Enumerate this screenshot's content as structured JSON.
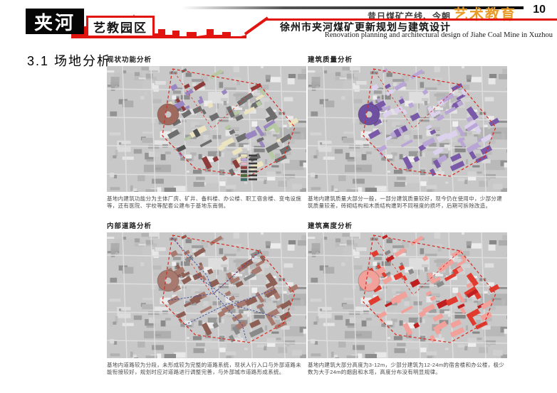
{
  "header": {
    "logo": "夹河",
    "badge": "艺教园区",
    "tagline_prefix": "昔日煤矿产线、今朝",
    "tagline_highlight": "艺术教育",
    "page_number": "10",
    "title_cn": "徐州市夹河煤矿更新规划与建筑设计",
    "title_en": "Renovation planning and architectural design of Jiahe Coal Mine in Xuzhou",
    "accent_color": "#e1140f",
    "highlight_color": "#e89c28"
  },
  "section": {
    "title": "3.1 场地分析"
  },
  "panels": [
    {
      "id": "function",
      "title": "现状功能分析",
      "caption": "基地内建筑功能分为主体厂房、矿井、备料楼、办公楼、职工宿舍楼、变电设施等，还有医院、学校等配套公建布于基地东南侧。",
      "circle_color": "#a0695e",
      "palette": [
        [
          "#6e6e6e",
          0.38
        ],
        [
          "#9a86c0",
          0.18
        ],
        [
          "#ece3c0",
          0.18
        ],
        [
          "#b7c9a3",
          0.08
        ],
        [
          "#8e3b3b",
          0.09
        ],
        [
          "#535353",
          0.09
        ]
      ]
    },
    {
      "id": "quality",
      "title": "建筑质量分析",
      "caption": "基地内建筑质量大部分一般，一部分建筑质量较好，现今仍在使用中，少部分建筑质量较差，砖砌结构和木质结构遭到不同程度的损坏，后期可拆除改造。",
      "circle_color": "#6f4fa0",
      "palette": [
        [
          "#7a5aa8",
          0.4
        ],
        [
          "#b9a6d6",
          0.35
        ],
        [
          "#ddd2ee",
          0.25
        ]
      ]
    },
    {
      "id": "roads",
      "title": "内部道路分析",
      "caption": "基地内道路较为分段，未形成较为完整的道路系统，现状人行入口与外部道路未能衔接较好，规划时应对道路进行调整完善，与外部城市道路形成系统。",
      "circle_color": "#a8796e",
      "palette": [
        [
          "#a8796e",
          0.62
        ],
        [
          "#8d5f55",
          0.28
        ],
        [
          "#8a8a8a",
          0.1
        ]
      ]
    },
    {
      "id": "height",
      "title": "建筑高度分析",
      "caption": "基地内建筑大部分高度为3-12m，少部分建筑为12-24m的宿舍楼和办公楼，极少数为大于24m的烟囱和水塔，高度分布没有明显规律。",
      "circle_color": "#f2a09a",
      "palette": [
        [
          "#e03b2e",
          0.38
        ],
        [
          "#f2a09a",
          0.38
        ],
        [
          "#c01f1f",
          0.14
        ],
        [
          "#8a8a8a",
          0.1
        ]
      ]
    }
  ],
  "map": {
    "boundary_color": "#d42a1e",
    "road_overlay_color": "#44549e",
    "legend_colors": [
      "#ece3c0",
      "#b9a6d6",
      "#e3b8c8",
      "#8e3b3b",
      "#3b3b3b",
      "#4e6b3c",
      "#3c6b66"
    ]
  }
}
